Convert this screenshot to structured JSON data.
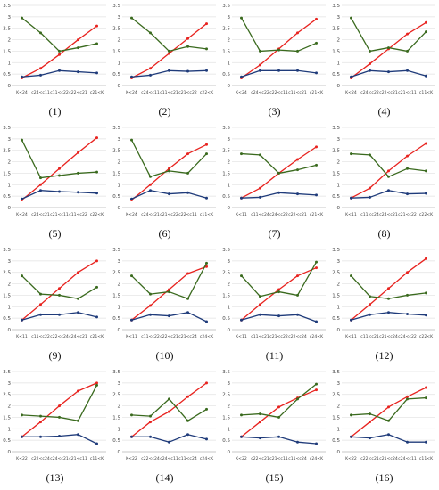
{
  "colors": {
    "red": "#e8231f",
    "green": "#3a6a1e",
    "blue": "#1f3b7a",
    "grid": "#e2e2e2",
    "tick": "#444444"
  },
  "chart_data": [
    {
      "type": "line",
      "caption": "(1)",
      "categories": [
        "K<24",
        "c24<c11",
        "c11<c22",
        "c22<c21",
        "c21<K"
      ],
      "ylim": [
        0,
        3.5
      ],
      "yticks": [
        "0",
        "0.5",
        "1",
        "1.5",
        "2",
        "2.5",
        "3",
        "3.5"
      ],
      "grid": true,
      "series": [
        {
          "color": "red",
          "values": [
            0.33,
            0.75,
            1.35,
            2.0,
            2.6
          ]
        },
        {
          "color": "green",
          "values": [
            2.95,
            2.3,
            1.5,
            1.65,
            1.83
          ]
        },
        {
          "color": "blue",
          "values": [
            0.38,
            0.45,
            0.65,
            0.6,
            0.55
          ]
        }
      ]
    },
    {
      "type": "line",
      "caption": "(2)",
      "categories": [
        "K<24",
        "c24<c11",
        "c11<c21",
        "c21<c22",
        "c22<K"
      ],
      "ylim": [
        0,
        3.5
      ],
      "yticks": [
        "0",
        "0.5",
        "1",
        "1.5",
        "2",
        "2.5",
        "3",
        "3.5"
      ],
      "grid": true,
      "series": [
        {
          "color": "red",
          "values": [
            0.33,
            0.75,
            1.4,
            2.05,
            2.7
          ]
        },
        {
          "color": "green",
          "values": [
            2.95,
            2.3,
            1.5,
            1.7,
            1.6
          ]
        },
        {
          "color": "blue",
          "values": [
            0.38,
            0.45,
            0.65,
            0.62,
            0.65
          ]
        }
      ]
    },
    {
      "type": "line",
      "caption": "(3)",
      "categories": [
        "K<24",
        "c24<c22",
        "c22<c11",
        "c11<c21",
        "c21<K"
      ],
      "ylim": [
        0,
        3.5
      ],
      "yticks": [
        "0",
        "0.5",
        "1",
        "1.5",
        "2",
        "2.5",
        "3",
        "3.5"
      ],
      "grid": true,
      "series": [
        {
          "color": "red",
          "values": [
            0.33,
            0.9,
            1.6,
            2.3,
            2.9
          ]
        },
        {
          "color": "green",
          "values": [
            2.95,
            1.5,
            1.55,
            1.5,
            1.85
          ]
        },
        {
          "color": "blue",
          "values": [
            0.38,
            0.65,
            0.65,
            0.65,
            0.55
          ]
        }
      ]
    },
    {
      "type": "line",
      "caption": "(4)",
      "categories": [
        "K<24",
        "c24<c22",
        "c22<c21",
        "c21<c11",
        "c11<K"
      ],
      "ylim": [
        0,
        3.5
      ],
      "yticks": [
        "0",
        "0.5",
        "1",
        "1.5",
        "2",
        "2.5",
        "3",
        "3.5"
      ],
      "grid": true,
      "series": [
        {
          "color": "red",
          "values": [
            0.33,
            0.95,
            1.6,
            2.25,
            2.75
          ]
        },
        {
          "color": "green",
          "values": [
            2.95,
            1.5,
            1.65,
            1.5,
            2.35
          ]
        },
        {
          "color": "blue",
          "values": [
            0.38,
            0.65,
            0.6,
            0.65,
            0.42
          ]
        }
      ]
    },
    {
      "type": "line",
      "caption": "(5)",
      "categories": [
        "K<24",
        "c24<c21",
        "c21<c11",
        "c11<c22",
        "c22<K"
      ],
      "ylim": [
        0,
        3.5
      ],
      "yticks": [
        "0",
        "0.5",
        "1",
        "1.5",
        "2",
        "2.5",
        "3",
        "3.5"
      ],
      "grid": true,
      "series": [
        {
          "color": "red",
          "values": [
            0.33,
            1.0,
            1.7,
            2.4,
            3.05
          ]
        },
        {
          "color": "green",
          "values": [
            2.95,
            1.3,
            1.4,
            1.5,
            1.55
          ]
        },
        {
          "color": "blue",
          "values": [
            0.38,
            0.75,
            0.7,
            0.67,
            0.63
          ]
        }
      ]
    },
    {
      "type": "line",
      "caption": "(6)",
      "categories": [
        "K<24",
        "c24<c21",
        "c21<c22",
        "c22<c11",
        "c11<K"
      ],
      "ylim": [
        0,
        3.5
      ],
      "yticks": [
        "0",
        "0.5",
        "1",
        "1.5",
        "2",
        "2.5",
        "3",
        "3.5"
      ],
      "grid": true,
      "series": [
        {
          "color": "red",
          "values": [
            0.33,
            1.0,
            1.7,
            2.35,
            2.75
          ]
        },
        {
          "color": "green",
          "values": [
            2.95,
            1.35,
            1.6,
            1.5,
            2.35
          ]
        },
        {
          "color": "blue",
          "values": [
            0.38,
            0.75,
            0.6,
            0.65,
            0.42
          ]
        }
      ]
    },
    {
      "type": "line",
      "caption": "(7)",
      "categories": [
        "K<11",
        "c11<c24",
        "c24<c22",
        "c22<c21",
        "c21<K"
      ],
      "ylim": [
        0,
        3.5
      ],
      "yticks": [
        "0",
        "0.5",
        "1",
        "1.5",
        "2",
        "2.5",
        "3",
        "3.5"
      ],
      "grid": true,
      "series": [
        {
          "color": "red",
          "values": [
            0.42,
            0.85,
            1.5,
            2.1,
            2.65
          ]
        },
        {
          "color": "green",
          "values": [
            2.35,
            2.3,
            1.5,
            1.65,
            1.85
          ]
        },
        {
          "color": "blue",
          "values": [
            0.42,
            0.45,
            0.65,
            0.6,
            0.55
          ]
        }
      ]
    },
    {
      "type": "line",
      "caption": "(8)",
      "categories": [
        "K<11",
        "c11<c24",
        "c24<c21",
        "c21<c22",
        "c22<K"
      ],
      "ylim": [
        0,
        3.5
      ],
      "yticks": [
        "0",
        "0.5",
        "1",
        "1.5",
        "2",
        "2.5",
        "3",
        "3.5"
      ],
      "grid": true,
      "series": [
        {
          "color": "red",
          "values": [
            0.42,
            0.85,
            1.6,
            2.25,
            2.8
          ]
        },
        {
          "color": "green",
          "values": [
            2.35,
            2.3,
            1.35,
            1.7,
            1.6
          ]
        },
        {
          "color": "blue",
          "values": [
            0.42,
            0.45,
            0.75,
            0.6,
            0.62
          ]
        }
      ]
    },
    {
      "type": "line",
      "caption": "(9)",
      "categories": [
        "K<11",
        "c11<c22",
        "c22<c24",
        "c24<c21",
        "c21<K"
      ],
      "ylim": [
        0,
        3.5
      ],
      "yticks": [
        "0",
        "0.5",
        "1",
        "1.5",
        "2",
        "2.5",
        "3",
        "3.5"
      ],
      "grid": true,
      "series": [
        {
          "color": "red",
          "values": [
            0.42,
            1.1,
            1.8,
            2.5,
            3.0
          ]
        },
        {
          "color": "green",
          "values": [
            2.35,
            1.55,
            1.5,
            1.35,
            1.85
          ]
        },
        {
          "color": "blue",
          "values": [
            0.42,
            0.65,
            0.65,
            0.75,
            0.55
          ]
        }
      ]
    },
    {
      "type": "line",
      "caption": "(10)",
      "categories": [
        "K<11",
        "c11<c22",
        "c22<c21",
        "c21<c24",
        "c24<K"
      ],
      "ylim": [
        0,
        3.5
      ],
      "yticks": [
        "0",
        "0.5",
        "1",
        "1.5",
        "2",
        "2.5",
        "3",
        "3.5"
      ],
      "grid": true,
      "series": [
        {
          "color": "red",
          "values": [
            0.42,
            1.05,
            1.75,
            2.45,
            2.75
          ]
        },
        {
          "color": "green",
          "values": [
            2.35,
            1.55,
            1.65,
            1.35,
            2.9
          ]
        },
        {
          "color": "blue",
          "values": [
            0.42,
            0.65,
            0.6,
            0.75,
            0.35
          ]
        }
      ]
    },
    {
      "type": "line",
      "caption": "(11)",
      "categories": [
        "K<11",
        "c11<c21",
        "c21<c22",
        "c22<c24",
        "c24<K"
      ],
      "ylim": [
        0,
        3.5
      ],
      "yticks": [
        "0",
        "0.5",
        "1",
        "1.5",
        "2",
        "2.5",
        "3",
        "3.5"
      ],
      "grid": true,
      "series": [
        {
          "color": "red",
          "values": [
            0.42,
            1.1,
            1.75,
            2.35,
            2.7
          ]
        },
        {
          "color": "green",
          "values": [
            2.35,
            1.45,
            1.65,
            1.5,
            2.95
          ]
        },
        {
          "color": "blue",
          "values": [
            0.42,
            0.65,
            0.6,
            0.65,
            0.35
          ]
        }
      ]
    },
    {
      "type": "line",
      "caption": "(12)",
      "categories": [
        "K<11",
        "c11<c21",
        "c21<c24",
        "c24<c22",
        "c22<K"
      ],
      "ylim": [
        0,
        3.5
      ],
      "yticks": [
        "0",
        "0.5",
        "1",
        "1.5",
        "2",
        "2.5",
        "3",
        "3.5"
      ],
      "grid": true,
      "series": [
        {
          "color": "red",
          "values": [
            0.42,
            1.1,
            1.8,
            2.5,
            3.1
          ]
        },
        {
          "color": "green",
          "values": [
            2.35,
            1.45,
            1.35,
            1.5,
            1.6
          ]
        },
        {
          "color": "blue",
          "values": [
            0.42,
            0.65,
            0.75,
            0.68,
            0.63
          ]
        }
      ]
    },
    {
      "type": "line",
      "caption": "(13)",
      "categories": [
        "K<22",
        "c22<c24",
        "c24<c21",
        "c21<c11",
        "c11<K"
      ],
      "ylim": [
        0,
        3.5
      ],
      "yticks": [
        "0",
        "0.5",
        "1",
        "1.5",
        "2",
        "2.5",
        "3",
        "3.5"
      ],
      "grid": true,
      "series": [
        {
          "color": "red",
          "values": [
            0.65,
            1.3,
            2.0,
            2.65,
            3.0
          ]
        },
        {
          "color": "green",
          "values": [
            1.6,
            1.55,
            1.5,
            1.35,
            2.9
          ]
        },
        {
          "color": "blue",
          "values": [
            0.65,
            0.65,
            0.68,
            0.75,
            0.35
          ]
        }
      ]
    },
    {
      "type": "line",
      "caption": "(14)",
      "categories": [
        "K<22",
        "c22<c24",
        "c24<c11",
        "c11<c24",
        "c24<K"
      ],
      "ylim": [
        0,
        3.5
      ],
      "yticks": [
        "0",
        "0.5",
        "1",
        "1.5",
        "2",
        "2.5",
        "3",
        "3.5"
      ],
      "grid": true,
      "series": [
        {
          "color": "red",
          "values": [
            0.65,
            1.3,
            1.75,
            2.4,
            3.0
          ]
        },
        {
          "color": "green",
          "values": [
            1.6,
            1.55,
            2.3,
            1.35,
            1.85
          ]
        },
        {
          "color": "blue",
          "values": [
            0.65,
            0.65,
            0.42,
            0.75,
            0.55
          ]
        }
      ]
    },
    {
      "type": "line",
      "caption": "(15)",
      "categories": [
        "K<22",
        "c22<c21",
        "c21<c11",
        "c11<c24",
        "c24<K"
      ],
      "ylim": [
        0,
        3.5
      ],
      "yticks": [
        "0",
        "0.5",
        "1",
        "1.5",
        "2",
        "2.5",
        "3",
        "3.5"
      ],
      "grid": true,
      "series": [
        {
          "color": "red",
          "values": [
            0.65,
            1.3,
            1.95,
            2.35,
            2.7
          ]
        },
        {
          "color": "green",
          "values": [
            1.6,
            1.65,
            1.5,
            2.3,
            2.95
          ]
        },
        {
          "color": "blue",
          "values": [
            0.65,
            0.6,
            0.65,
            0.42,
            0.35
          ]
        }
      ]
    },
    {
      "type": "line",
      "caption": "(16)",
      "categories": [
        "K<22",
        "c22<c21",
        "c21<c24",
        "c24<c11",
        "c11<K"
      ],
      "ylim": [
        0,
        3.5
      ],
      "yticks": [
        "0",
        "0.5",
        "1",
        "1.5",
        "2",
        "2.5",
        "3",
        "3.5"
      ],
      "grid": true,
      "series": [
        {
          "color": "red",
          "values": [
            0.65,
            1.3,
            1.95,
            2.4,
            2.8
          ]
        },
        {
          "color": "green",
          "values": [
            1.6,
            1.65,
            1.35,
            2.3,
            2.35
          ]
        },
        {
          "color": "blue",
          "values": [
            0.65,
            0.6,
            0.75,
            0.42,
            0.42
          ]
        }
      ]
    }
  ]
}
